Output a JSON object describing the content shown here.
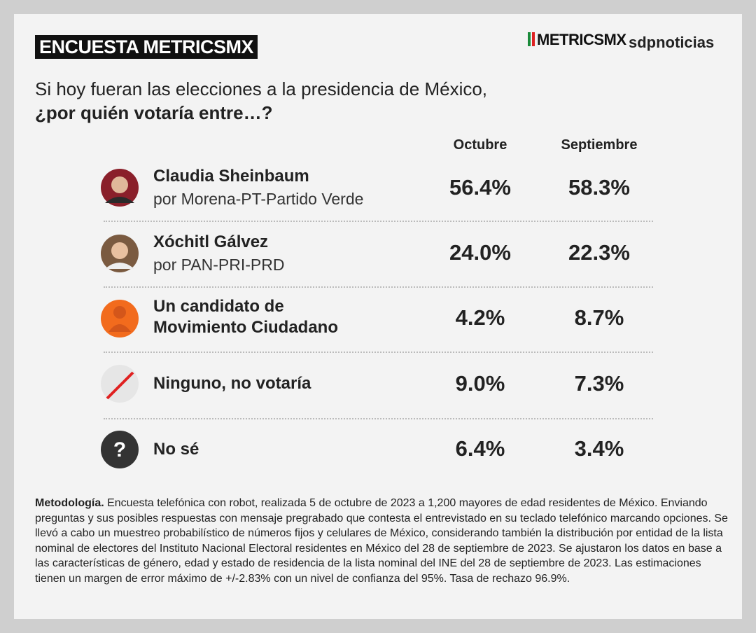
{
  "header": {
    "title": "ENCUESTA METRICSMX",
    "logos": [
      "METRICSMX",
      "sdpnoticias"
    ]
  },
  "question": {
    "line1": "Si hoy fueran las elecciones a la presidencia de México,",
    "line2": "¿por quién votaría entre…?"
  },
  "table": {
    "columns": [
      "Octubre",
      "Septiembre"
    ],
    "rows": [
      {
        "name": "Claudia Sheinbaum",
        "party": "por Morena-PT-Partido Verde",
        "values": [
          "56.4%",
          "58.3%"
        ]
      },
      {
        "name": "Xóchitl Gálvez",
        "party": "por PAN-PRI-PRD",
        "values": [
          "24.0%",
          "22.3%"
        ]
      },
      {
        "name": "Un candidato de\nMovimiento Ciudadano",
        "values": [
          "4.2%",
          "8.7%"
        ]
      },
      {
        "name": "Ninguno, no votaría",
        "values": [
          "9.0%",
          "7.3%"
        ]
      },
      {
        "name": "No sé",
        "values": [
          "6.4%",
          "3.4%"
        ]
      }
    ]
  },
  "methodology": {
    "label": "Metodología.",
    "text": "Encuesta telefónica con robot, realizada 5 de octubre de 2023 a 1,200 mayores de edad residentes de México. Enviando preguntas y sus posibles respuestas con mensaje pregrabado que contesta el entrevistado en su teclado telefónico marcando opciones. Se llevó a cabo un muestreo probabilístico de números fijos y celulares de México, considerando también la distribución por entidad de la lista nominal de electores del Instituto Nacional Electoral residentes en México del 28 de septiembre de 2023. Se ajustaron los datos en base a las características de género, edad y estado de residencia de la lista nominal del INE del 28 de septiembre de 2023. Las estimaciones tienen un margen de error máximo de +/-2.83% con un nivel de confianza del 95%. Tasa de rechazo 96.9%."
  }
}
